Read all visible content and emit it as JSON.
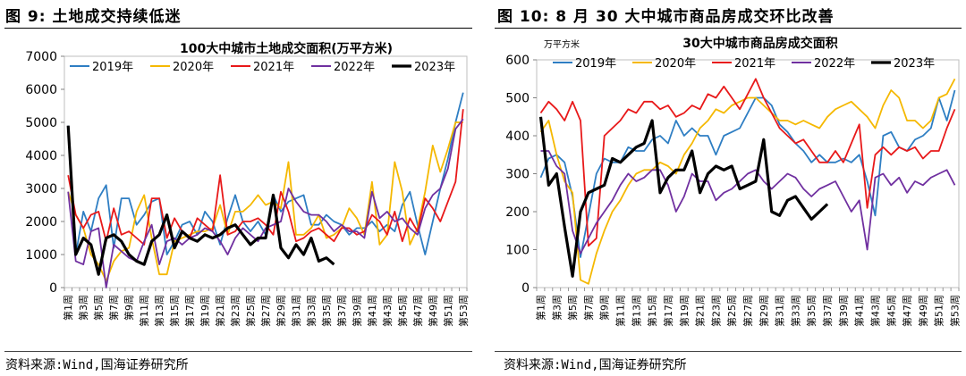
{
  "left": {
    "figure_title": "图 9:  土地成交持续低迷",
    "source": "资料来源:Wind,国海证券研究所",
    "chart_data": {
      "type": "line",
      "title": "100大中城市土地成交面积(万平方米)",
      "unit_label": "",
      "ylim": [
        0,
        7000
      ],
      "yticks": [
        0,
        1000,
        2000,
        3000,
        4000,
        5000,
        6000,
        7000
      ],
      "x_tick_labels": [
        "第1周",
        "第3周",
        "第5周",
        "第7周",
        "第9周",
        "第11周",
        "第13周",
        "第15周",
        "第17周",
        "第19周",
        "第21周",
        "第23周",
        "第25周",
        "第27周",
        "第29周",
        "第31周",
        "第33周",
        "第35周",
        "第37周",
        "第39周",
        "第41周",
        "第43周",
        "第45周",
        "第47周",
        "第49周",
        "第51周",
        "第53周"
      ],
      "legend_position": "top",
      "series": [
        {
          "name": "2019年",
          "color": "#2e7ec3",
          "values": [
            4900,
            1000,
            2300,
            1700,
            2700,
            3100,
            1200,
            2700,
            2700,
            1900,
            2200,
            2600,
            2700,
            1000,
            1400,
            1900,
            2000,
            1600,
            2300,
            2000,
            1300,
            2100,
            2800,
            2000,
            1700,
            2000,
            1600,
            2800,
            2300,
            2600,
            2700,
            2800,
            1900,
            1900,
            2200,
            2000,
            1900,
            1600,
            1800,
            1800,
            2000,
            1700,
            1900,
            1700,
            2500,
            2900,
            1900,
            1000,
            2000,
            3000,
            3900,
            5000,
            5900
          ]
        },
        {
          "name": "2020年",
          "color": "#f5b800",
          "values": [
            2900,
            2200,
            1800,
            1000,
            700,
            200,
            800,
            1100,
            1200,
            2300,
            2800,
            1500,
            400,
            400,
            1400,
            1500,
            1600,
            1700,
            1700,
            1800,
            2500,
            1600,
            2300,
            2300,
            2500,
            2800,
            2500,
            2600,
            2400,
            3800,
            1600,
            1600,
            1800,
            2200,
            1500,
            1600,
            1800,
            2400,
            2100,
            1600,
            3200,
            1300,
            1600,
            3800,
            2900,
            1300,
            1800,
            2900,
            4300,
            3500,
            4200,
            5000,
            5000
          ]
        },
        {
          "name": "2021年",
          "color": "#e8191a",
          "values": [
            3400,
            2200,
            1800,
            2200,
            2300,
            1400,
            2400,
            1600,
            1700,
            1500,
            1300,
            2700,
            2700,
            1500,
            2100,
            1700,
            1500,
            2100,
            1900,
            1700,
            3400,
            1600,
            1700,
            2000,
            2000,
            2100,
            1900,
            1600,
            2900,
            2300,
            1400,
            1500,
            1700,
            1800,
            1600,
            1400,
            1800,
            1800,
            1600,
            1700,
            2200,
            2000,
            1600,
            2300,
            1400,
            2100,
            1700,
            2700,
            2400,
            2000,
            2600,
            3200,
            5400
          ]
        },
        {
          "name": "2022年",
          "color": "#7030a0",
          "values": [
            2900,
            800,
            700,
            1700,
            1800,
            0,
            1300,
            1100,
            900,
            800,
            1400,
            1900,
            700,
            1400,
            1500,
            1300,
            1500,
            1600,
            1800,
            1700,
            1400,
            1000,
            1500,
            1800,
            1600,
            1400,
            1800,
            1900,
            2000,
            3000,
            2600,
            2300,
            2200,
            2200,
            2000,
            1700,
            1900,
            1700,
            1700,
            1500,
            2900,
            2100,
            2300,
            2000,
            2100,
            1800,
            1600,
            2400,
            2800,
            3000,
            3600,
            4800,
            5100
          ]
        },
        {
          "name": "2023年",
          "color": "#000000",
          "values": [
            4900,
            1000,
            1500,
            1300,
            400,
            1500,
            1600,
            1400,
            1000,
            800,
            700,
            1400,
            1600,
            2200,
            1200,
            1700,
            1500,
            1400,
            1600,
            1500,
            1600,
            1800,
            1900,
            1600,
            1300,
            1500,
            1500,
            2800,
            1200,
            900,
            1300,
            1000,
            1500,
            800,
            900,
            700
          ]
        }
      ]
    }
  },
  "right": {
    "figure_title": "图 10:  8 月 30 大中城市商品房成交环比改善",
    "source": "资料来源:Wind,国海证券研究所",
    "chart_data": {
      "type": "line",
      "title": "30大中城市商品房成交面积",
      "unit_label": "万平方米",
      "ylim": [
        0,
        600
      ],
      "yticks": [
        0,
        100,
        200,
        300,
        400,
        500,
        600
      ],
      "x_tick_labels": [
        "第1周",
        "第3周",
        "第5周",
        "第7周",
        "第9周",
        "第11周",
        "第13周",
        "第15周",
        "第17周",
        "第19周",
        "第21周",
        "第23周",
        "第25周",
        "第27周",
        "第29周",
        "第31周",
        "第33周",
        "第35周",
        "第37周",
        "第39周",
        "第41周",
        "第43周",
        "第45周",
        "第47周",
        "第49周",
        "第51周",
        "第53周"
      ],
      "legend_position": "top",
      "series": [
        {
          "name": "2019年",
          "color": "#2e7ec3",
          "values": [
            290,
            340,
            350,
            330,
            240,
            80,
            190,
            300,
            340,
            330,
            330,
            370,
            360,
            360,
            390,
            400,
            380,
            440,
            400,
            420,
            400,
            400,
            350,
            400,
            410,
            420,
            460,
            500,
            500,
            480,
            430,
            410,
            380,
            360,
            330,
            350,
            330,
            330,
            340,
            330,
            350,
            280,
            190,
            400,
            410,
            370,
            360,
            390,
            400,
            420,
            500,
            440,
            520
          ]
        },
        {
          "name": "2020年",
          "color": "#f5b800",
          "values": [
            410,
            440,
            350,
            280,
            250,
            20,
            10,
            90,
            150,
            200,
            230,
            270,
            300,
            310,
            310,
            330,
            320,
            300,
            350,
            380,
            420,
            440,
            470,
            460,
            480,
            490,
            500,
            500,
            480,
            460,
            440,
            440,
            430,
            440,
            430,
            420,
            450,
            470,
            480,
            490,
            470,
            450,
            420,
            480,
            520,
            500,
            440,
            440,
            420,
            440,
            500,
            510,
            550
          ]
        },
        {
          "name": "2021年",
          "color": "#e8191a",
          "values": [
            460,
            490,
            470,
            440,
            490,
            440,
            110,
            130,
            400,
            420,
            440,
            470,
            460,
            490,
            490,
            470,
            480,
            450,
            460,
            480,
            470,
            510,
            500,
            530,
            500,
            470,
            510,
            550,
            500,
            460,
            420,
            400,
            380,
            390,
            360,
            330,
            330,
            360,
            330,
            380,
            430,
            210,
            350,
            370,
            350,
            370,
            360,
            370,
            340,
            360,
            360,
            420,
            470
          ]
        },
        {
          "name": "2022年",
          "color": "#7030a0",
          "values": [
            360,
            360,
            320,
            300,
            150,
            90,
            130,
            170,
            200,
            230,
            270,
            300,
            280,
            290,
            310,
            310,
            270,
            200,
            240,
            300,
            280,
            280,
            230,
            250,
            260,
            280,
            300,
            310,
            280,
            260,
            280,
            300,
            290,
            260,
            240,
            260,
            270,
            280,
            240,
            200,
            230,
            100,
            290,
            300,
            270,
            290,
            250,
            280,
            270,
            290,
            300,
            310,
            270
          ]
        },
        {
          "name": "2023年",
          "color": "#000000",
          "values": [
            450,
            270,
            300,
            160,
            30,
            200,
            250,
            260,
            270,
            340,
            330,
            350,
            370,
            380,
            440,
            250,
            290,
            310,
            310,
            360,
            250,
            300,
            320,
            310,
            320,
            260,
            270,
            280,
            390,
            200,
            190,
            230,
            240,
            210,
            180,
            200,
            220
          ]
        }
      ]
    }
  }
}
